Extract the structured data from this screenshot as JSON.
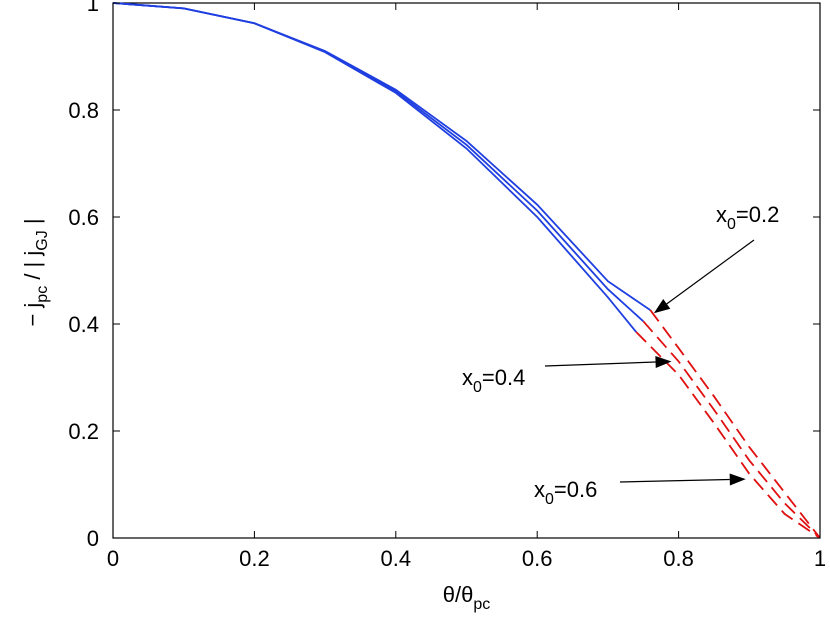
{
  "chart_data": {
    "type": "line",
    "xlim": [
      0,
      1
    ],
    "ylim": [
      0,
      1
    ],
    "xticks": [
      "0",
      "0.2",
      "0.4",
      "0.6",
      "0.8",
      "1"
    ],
    "yticks": [
      "0",
      "0.2",
      "0.4",
      "0.6",
      "0.8",
      "1"
    ],
    "xlabel": {
      "main": "θ/θ",
      "sub": "pc"
    },
    "ylabel": {
      "a": "− j",
      "a_sub": "pc",
      "b": " / | j",
      "b_sub": "GJ",
      "c": " |"
    },
    "grid": false,
    "colors": {
      "solid": "#1f3fe0",
      "dashed": "#e01010",
      "axis": "#000000"
    },
    "series": [
      {
        "label": "x0=0.2",
        "solid": [
          [
            0,
            1.0
          ],
          [
            0.1,
            0.99
          ],
          [
            0.2,
            0.962
          ],
          [
            0.3,
            0.91
          ],
          [
            0.4,
            0.838
          ],
          [
            0.5,
            0.742
          ],
          [
            0.6,
            0.623
          ],
          [
            0.7,
            0.48
          ],
          [
            0.76,
            0.426
          ]
        ],
        "dashed": [
          [
            0.76,
            0.426
          ],
          [
            0.8,
            0.355
          ],
          [
            0.85,
            0.265
          ],
          [
            0.9,
            0.17
          ],
          [
            0.95,
            0.085
          ],
          [
            1.0,
            0.0
          ]
        ]
      },
      {
        "label": "x0=0.4",
        "solid": [
          [
            0,
            1.0
          ],
          [
            0.1,
            0.99
          ],
          [
            0.2,
            0.962
          ],
          [
            0.3,
            0.909
          ],
          [
            0.4,
            0.835
          ],
          [
            0.5,
            0.735
          ],
          [
            0.6,
            0.612
          ],
          [
            0.7,
            0.465
          ],
          [
            0.75,
            0.405
          ]
        ],
        "dashed": [
          [
            0.75,
            0.405
          ],
          [
            0.8,
            0.33
          ],
          [
            0.85,
            0.24
          ],
          [
            0.9,
            0.145
          ],
          [
            0.95,
            0.065
          ],
          [
            1.0,
            0.0
          ]
        ]
      },
      {
        "label": "x0=0.6",
        "solid": [
          [
            0,
            1.0
          ],
          [
            0.1,
            0.99
          ],
          [
            0.2,
            0.962
          ],
          [
            0.3,
            0.908
          ],
          [
            0.4,
            0.832
          ],
          [
            0.5,
            0.728
          ],
          [
            0.6,
            0.6
          ],
          [
            0.7,
            0.45
          ],
          [
            0.74,
            0.385
          ]
        ],
        "dashed": [
          [
            0.74,
            0.385
          ],
          [
            0.8,
            0.305
          ],
          [
            0.85,
            0.215
          ],
          [
            0.9,
            0.12
          ],
          [
            0.95,
            0.045
          ],
          [
            1.0,
            0.0
          ]
        ]
      }
    ],
    "annotations": [
      {
        "text": "x",
        "sub": "0",
        "rest": "=0.2",
        "target": [
          0.765,
          0.42
        ]
      },
      {
        "text": "x",
        "sub": "0",
        "rest": "=0.4",
        "target": [
          0.79,
          0.33
        ]
      },
      {
        "text": "x",
        "sub": "0",
        "rest": "=0.6",
        "target": [
          0.895,
          0.11
        ]
      }
    ]
  }
}
